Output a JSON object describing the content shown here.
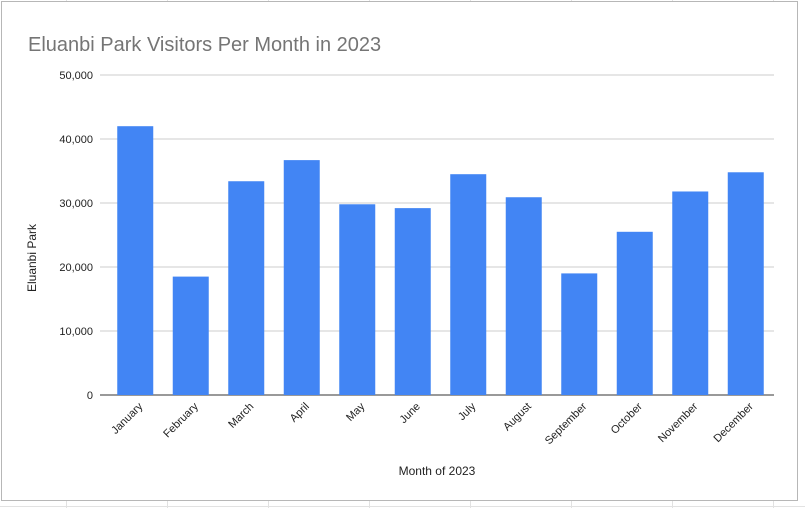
{
  "chart_data": {
    "type": "bar",
    "title": "Eluanbi Park Visitors Per Month in 2023",
    "xlabel": "Month of 2023",
    "ylabel": "Eluanbi Park",
    "categories": [
      "January",
      "February",
      "March",
      "April",
      "May",
      "June",
      "July",
      "August",
      "September",
      "October",
      "November",
      "December"
    ],
    "series": [
      {
        "values": [
          42000,
          18500,
          33400,
          36700,
          29800,
          29200,
          34500,
          30900,
          19000,
          25500,
          31800,
          34800
        ]
      }
    ],
    "ylim": [
      0,
      50000
    ],
    "yticks": [
      "0",
      "10,000",
      "20,000",
      "30,000",
      "40,000",
      "50,000"
    ],
    "grid": true,
    "bar_color": "#4285f4",
    "grid_color": "#cccccc"
  }
}
